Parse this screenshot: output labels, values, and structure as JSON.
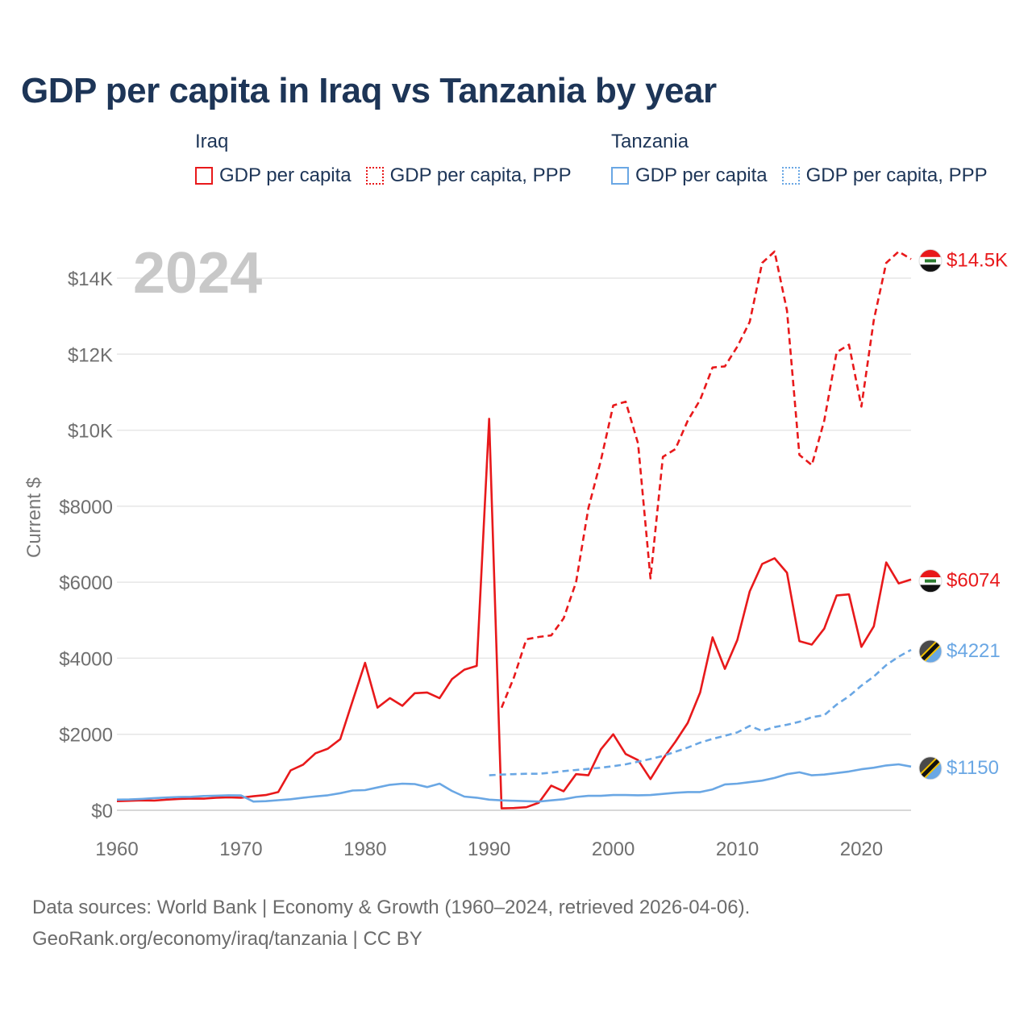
{
  "title": "GDP per capita in Iraq vs Tanzania by year",
  "legend": {
    "groups": [
      {
        "country": "Iraq",
        "color": "#e8191b",
        "solid_label": "GDP per capita",
        "dashed_label": "GDP per capita, PPP"
      },
      {
        "country": "Tanzania",
        "color": "#6aa7e4",
        "solid_label": "GDP per capita",
        "dashed_label": "GDP per capita, PPP"
      }
    ]
  },
  "year_label": "2024",
  "source": {
    "line1": "Data sources: World Bank | Economy & Growth (1960–2024, retrieved 2026-04-06).",
    "line2": "GeoRank.org/economy/iraq/tanzania | CC BY"
  },
  "chart_data": {
    "type": "line",
    "ylabel": "Current $",
    "xlim": [
      1960,
      2024
    ],
    "ylim": [
      0,
      15000
    ],
    "x_ticks": [
      1960,
      1970,
      1980,
      1990,
      2000,
      2010,
      2020
    ],
    "y_ticks": [
      {
        "value": 0,
        "label": "$0"
      },
      {
        "value": 2000,
        "label": "$2000"
      },
      {
        "value": 4000,
        "label": "$4000"
      },
      {
        "value": 6000,
        "label": "$6000"
      },
      {
        "value": 8000,
        "label": "$8000"
      },
      {
        "value": 10000,
        "label": "$10K"
      },
      {
        "value": 12000,
        "label": "$12K"
      },
      {
        "value": 14000,
        "label": "$14K"
      }
    ],
    "grid": true,
    "series": [
      {
        "name": "Iraq GDP per capita",
        "color": "#e8191b",
        "dash": false,
        "flag": "iraq",
        "end_label": "$6074",
        "points": [
          [
            1960,
            240
          ],
          [
            1961,
            250
          ],
          [
            1962,
            260
          ],
          [
            1963,
            255
          ],
          [
            1964,
            280
          ],
          [
            1965,
            300
          ],
          [
            1966,
            310
          ],
          [
            1967,
            305
          ],
          [
            1968,
            330
          ],
          [
            1969,
            340
          ],
          [
            1970,
            330
          ],
          [
            1971,
            370
          ],
          [
            1972,
            400
          ],
          [
            1973,
            480
          ],
          [
            1974,
            1050
          ],
          [
            1975,
            1200
          ],
          [
            1976,
            1500
          ],
          [
            1977,
            1620
          ],
          [
            1978,
            1870
          ],
          [
            1979,
            2880
          ],
          [
            1980,
            3880
          ],
          [
            1981,
            2700
          ],
          [
            1982,
            2950
          ],
          [
            1983,
            2750
          ],
          [
            1984,
            3080
          ],
          [
            1985,
            3100
          ],
          [
            1986,
            2950
          ],
          [
            1987,
            3450
          ],
          [
            1988,
            3700
          ],
          [
            1989,
            3800
          ],
          [
            1990,
            10300
          ],
          [
            1991,
            50
          ],
          [
            1992,
            60
          ],
          [
            1993,
            80
          ],
          [
            1994,
            200
          ],
          [
            1995,
            650
          ],
          [
            1996,
            500
          ],
          [
            1997,
            950
          ],
          [
            1998,
            920
          ],
          [
            1999,
            1600
          ],
          [
            2000,
            2000
          ],
          [
            2001,
            1480
          ],
          [
            2002,
            1320
          ],
          [
            2003,
            820
          ],
          [
            2004,
            1350
          ],
          [
            2005,
            1800
          ],
          [
            2006,
            2300
          ],
          [
            2007,
            3100
          ],
          [
            2008,
            4550
          ],
          [
            2009,
            3720
          ],
          [
            2010,
            4480
          ],
          [
            2011,
            5760
          ],
          [
            2012,
            6480
          ],
          [
            2013,
            6630
          ],
          [
            2014,
            6250
          ],
          [
            2015,
            4450
          ],
          [
            2016,
            4360
          ],
          [
            2017,
            4780
          ],
          [
            2018,
            5650
          ],
          [
            2019,
            5680
          ],
          [
            2020,
            4300
          ],
          [
            2021,
            4840
          ],
          [
            2022,
            6520
          ],
          [
            2023,
            5970
          ],
          [
            2024,
            6074
          ]
        ]
      },
      {
        "name": "Iraq GDP per capita, PPP",
        "color": "#e8191b",
        "dash": true,
        "flag": "iraq",
        "end_label": "$14.5K",
        "points": [
          [
            1991,
            2700
          ],
          [
            1992,
            3500
          ],
          [
            1993,
            4500
          ],
          [
            1994,
            4560
          ],
          [
            1995,
            4600
          ],
          [
            1996,
            5050
          ],
          [
            1997,
            6000
          ],
          [
            1998,
            7950
          ],
          [
            1999,
            9200
          ],
          [
            2000,
            10650
          ],
          [
            2001,
            10750
          ],
          [
            2002,
            9650
          ],
          [
            2003,
            6100
          ],
          [
            2004,
            9300
          ],
          [
            2005,
            9500
          ],
          [
            2006,
            10250
          ],
          [
            2007,
            10800
          ],
          [
            2008,
            11650
          ],
          [
            2009,
            11680
          ],
          [
            2010,
            12200
          ],
          [
            2011,
            12850
          ],
          [
            2012,
            14400
          ],
          [
            2013,
            14700
          ],
          [
            2014,
            13150
          ],
          [
            2015,
            9350
          ],
          [
            2016,
            9080
          ],
          [
            2017,
            10250
          ],
          [
            2018,
            12050
          ],
          [
            2019,
            12250
          ],
          [
            2020,
            10620
          ],
          [
            2021,
            12900
          ],
          [
            2022,
            14400
          ],
          [
            2023,
            14700
          ],
          [
            2024,
            14500
          ]
        ]
      },
      {
        "name": "Tanzania GDP per capita",
        "color": "#6aa7e4",
        "dash": false,
        "flag": "tanzania",
        "end_label": "$1150",
        "points": [
          [
            1960,
            280
          ],
          [
            1961,
            285
          ],
          [
            1962,
            300
          ],
          [
            1963,
            320
          ],
          [
            1964,
            335
          ],
          [
            1965,
            350
          ],
          [
            1966,
            355
          ],
          [
            1967,
            375
          ],
          [
            1968,
            385
          ],
          [
            1969,
            395
          ],
          [
            1970,
            390
          ],
          [
            1971,
            230
          ],
          [
            1972,
            240
          ],
          [
            1973,
            265
          ],
          [
            1974,
            290
          ],
          [
            1975,
            330
          ],
          [
            1976,
            365
          ],
          [
            1977,
            395
          ],
          [
            1978,
            450
          ],
          [
            1979,
            520
          ],
          [
            1980,
            530
          ],
          [
            1981,
            600
          ],
          [
            1982,
            670
          ],
          [
            1983,
            700
          ],
          [
            1984,
            690
          ],
          [
            1985,
            610
          ],
          [
            1986,
            700
          ],
          [
            1987,
            510
          ],
          [
            1988,
            360
          ],
          [
            1989,
            330
          ],
          [
            1990,
            280
          ],
          [
            1991,
            260
          ],
          [
            1992,
            250
          ],
          [
            1993,
            240
          ],
          [
            1994,
            230
          ],
          [
            1995,
            260
          ],
          [
            1996,
            290
          ],
          [
            1997,
            350
          ],
          [
            1998,
            380
          ],
          [
            1999,
            380
          ],
          [
            2000,
            400
          ],
          [
            2001,
            400
          ],
          [
            2002,
            395
          ],
          [
            2003,
            400
          ],
          [
            2004,
            430
          ],
          [
            2005,
            460
          ],
          [
            2006,
            480
          ],
          [
            2007,
            480
          ],
          [
            2008,
            550
          ],
          [
            2009,
            680
          ],
          [
            2010,
            700
          ],
          [
            2011,
            740
          ],
          [
            2012,
            780
          ],
          [
            2013,
            850
          ],
          [
            2014,
            950
          ],
          [
            2015,
            1000
          ],
          [
            2016,
            920
          ],
          [
            2017,
            940
          ],
          [
            2018,
            980
          ],
          [
            2019,
            1020
          ],
          [
            2020,
            1080
          ],
          [
            2021,
            1120
          ],
          [
            2022,
            1180
          ],
          [
            2023,
            1210
          ],
          [
            2024,
            1150
          ]
        ]
      },
      {
        "name": "Tanzania GDP per capita, PPP",
        "color": "#6aa7e4",
        "dash": true,
        "flag": "tanzania",
        "end_label": "$4221",
        "points": [
          [
            1990,
            920
          ],
          [
            1991,
            940
          ],
          [
            1992,
            950
          ],
          [
            1993,
            960
          ],
          [
            1994,
            960
          ],
          [
            1995,
            990
          ],
          [
            1996,
            1030
          ],
          [
            1997,
            1060
          ],
          [
            1998,
            1090
          ],
          [
            1999,
            1120
          ],
          [
            2000,
            1160
          ],
          [
            2001,
            1210
          ],
          [
            2002,
            1280
          ],
          [
            2003,
            1350
          ],
          [
            2004,
            1430
          ],
          [
            2005,
            1540
          ],
          [
            2006,
            1650
          ],
          [
            2007,
            1780
          ],
          [
            2008,
            1880
          ],
          [
            2009,
            1960
          ],
          [
            2010,
            2050
          ],
          [
            2011,
            2220
          ],
          [
            2012,
            2090
          ],
          [
            2013,
            2190
          ],
          [
            2014,
            2250
          ],
          [
            2015,
            2330
          ],
          [
            2016,
            2450
          ],
          [
            2017,
            2500
          ],
          [
            2018,
            2780
          ],
          [
            2019,
            3000
          ],
          [
            2020,
            3280
          ],
          [
            2021,
            3520
          ],
          [
            2022,
            3820
          ],
          [
            2023,
            4040
          ],
          [
            2024,
            4221
          ]
        ]
      }
    ]
  }
}
